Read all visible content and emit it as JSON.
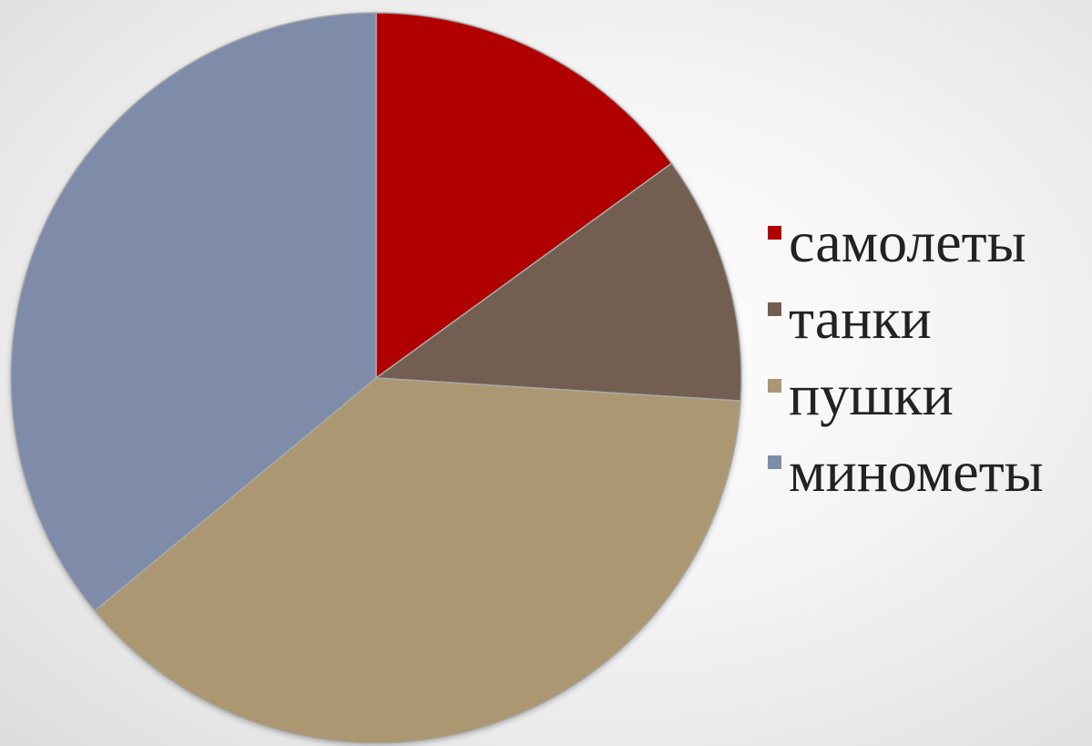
{
  "chart_data": {
    "type": "pie",
    "title": "",
    "start_angle_deg": 0,
    "direction": "clockwise",
    "legend_position": "right",
    "slices": [
      {
        "label": "самолеты",
        "value": 15,
        "color": "#b00000"
      },
      {
        "label": "танки",
        "value": 11,
        "color": "#735f51"
      },
      {
        "label": "пушки",
        "value": 38,
        "color": "#ab9772"
      },
      {
        "label": "минометы",
        "value": 36,
        "color": "#7e8caa"
      }
    ]
  }
}
